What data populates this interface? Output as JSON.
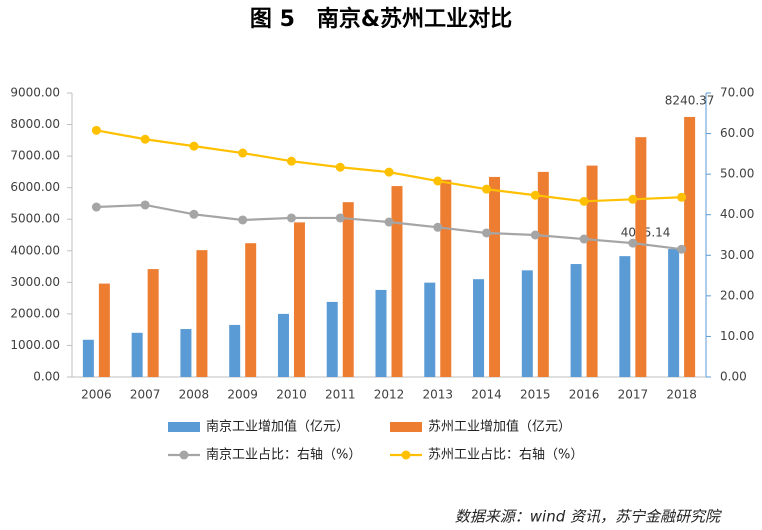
{
  "chart_data": {
    "type": "bar",
    "title": "图 5　南京&苏州工业对比",
    "source": "数据来源：wind 资讯，苏宁金融研究院",
    "categories": [
      "2006",
      "2007",
      "2008",
      "2009",
      "2010",
      "2011",
      "2012",
      "2013",
      "2014",
      "2015",
      "2016",
      "2017",
      "2018"
    ],
    "series": [
      {
        "name": "南京工业增加值（亿元）",
        "type": "bar",
        "color": "#5b9bd5",
        "values": [
          1180,
          1400,
          1520,
          1650,
          2000,
          2380,
          2760,
          2990,
          3100,
          3380,
          3580,
          3830,
          4055.14
        ]
      },
      {
        "name": "苏州工业增加值（亿元）",
        "type": "bar",
        "color": "#ed7d31",
        "values": [
          2960,
          3420,
          4020,
          4240,
          4900,
          5540,
          6050,
          6250,
          6340,
          6500,
          6700,
          7600,
          8240.37
        ]
      },
      {
        "name": "南京工业占比：右轴（%）",
        "type": "line",
        "axis": "y2",
        "color": "#a5a5a5",
        "values": [
          41.9,
          42.4,
          40.1,
          38.7,
          39.2,
          39.2,
          38.2,
          36.9,
          35.5,
          35.0,
          34.0,
          33.0,
          31.5
        ]
      },
      {
        "name": "苏州工业占比：右轴（%）",
        "type": "line",
        "axis": "y2",
        "color": "#ffc000",
        "values": [
          60.8,
          58.6,
          56.9,
          55.2,
          53.2,
          51.7,
          50.5,
          48.3,
          46.3,
          44.8,
          43.3,
          43.8,
          44.3
        ]
      }
    ],
    "ylim": [
      0,
      9000
    ],
    "yticks": [
      {
        "value": 0,
        "label": "0.00"
      },
      {
        "value": 1000,
        "label": "1000.00"
      },
      {
        "value": 2000,
        "label": "2000.00"
      },
      {
        "value": 3000,
        "label": "3000.00"
      },
      {
        "value": 4000,
        "label": "4000.00"
      },
      {
        "value": 5000,
        "label": "5000.00"
      },
      {
        "value": 6000,
        "label": "6000.00"
      },
      {
        "value": 7000,
        "label": "7000.00"
      },
      {
        "value": 8000,
        "label": "8000.00"
      },
      {
        "value": 9000,
        "label": "9000.00"
      }
    ],
    "y2lim": [
      0,
      70
    ],
    "y2ticks": [
      {
        "value": 0,
        "label": "0.00"
      },
      {
        "value": 10,
        "label": "10.00"
      },
      {
        "value": 20,
        "label": "20.00"
      },
      {
        "value": 30,
        "label": "30.00"
      },
      {
        "value": 40,
        "label": "40.00"
      },
      {
        "value": 50,
        "label": "50.00"
      },
      {
        "value": 60,
        "label": "60.00"
      },
      {
        "value": 70,
        "label": "70.00"
      }
    ],
    "grid": false
  }
}
